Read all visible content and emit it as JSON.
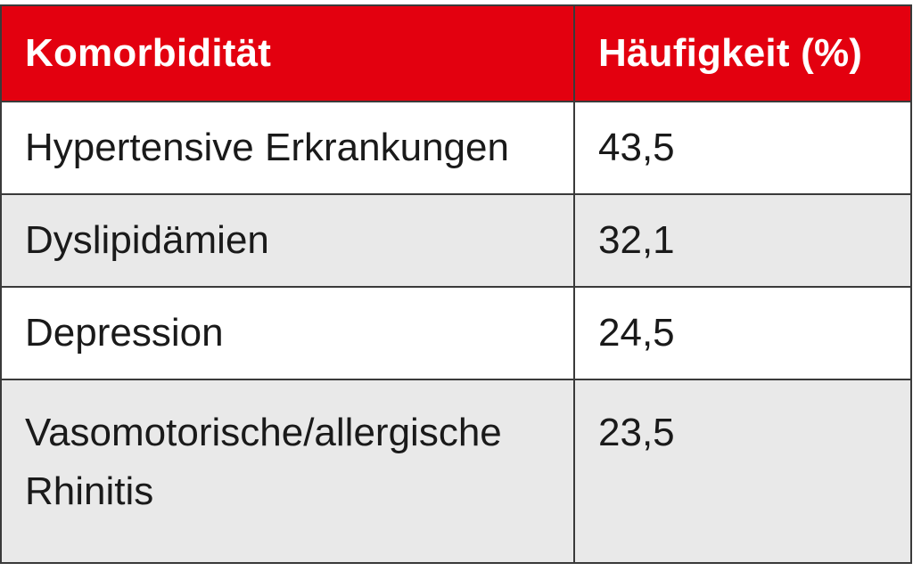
{
  "table": {
    "headers": [
      "Komorbidität",
      "Häufigkeit (%)"
    ],
    "rows": [
      {
        "condition": "Hypertensive Erkrankungen",
        "frequency": "43,5"
      },
      {
        "condition": "Dyslipidämien",
        "frequency": "32,1"
      },
      {
        "condition": "Depression",
        "frequency": "24,5"
      },
      {
        "condition": "Vasomotorische/allergische Rhinitis",
        "frequency": "23,5"
      }
    ]
  },
  "colors": {
    "header_background": "#e3000f",
    "header_text": "#ffffff",
    "stripe": "#e9e9e9",
    "border": "#3a3a3a"
  }
}
